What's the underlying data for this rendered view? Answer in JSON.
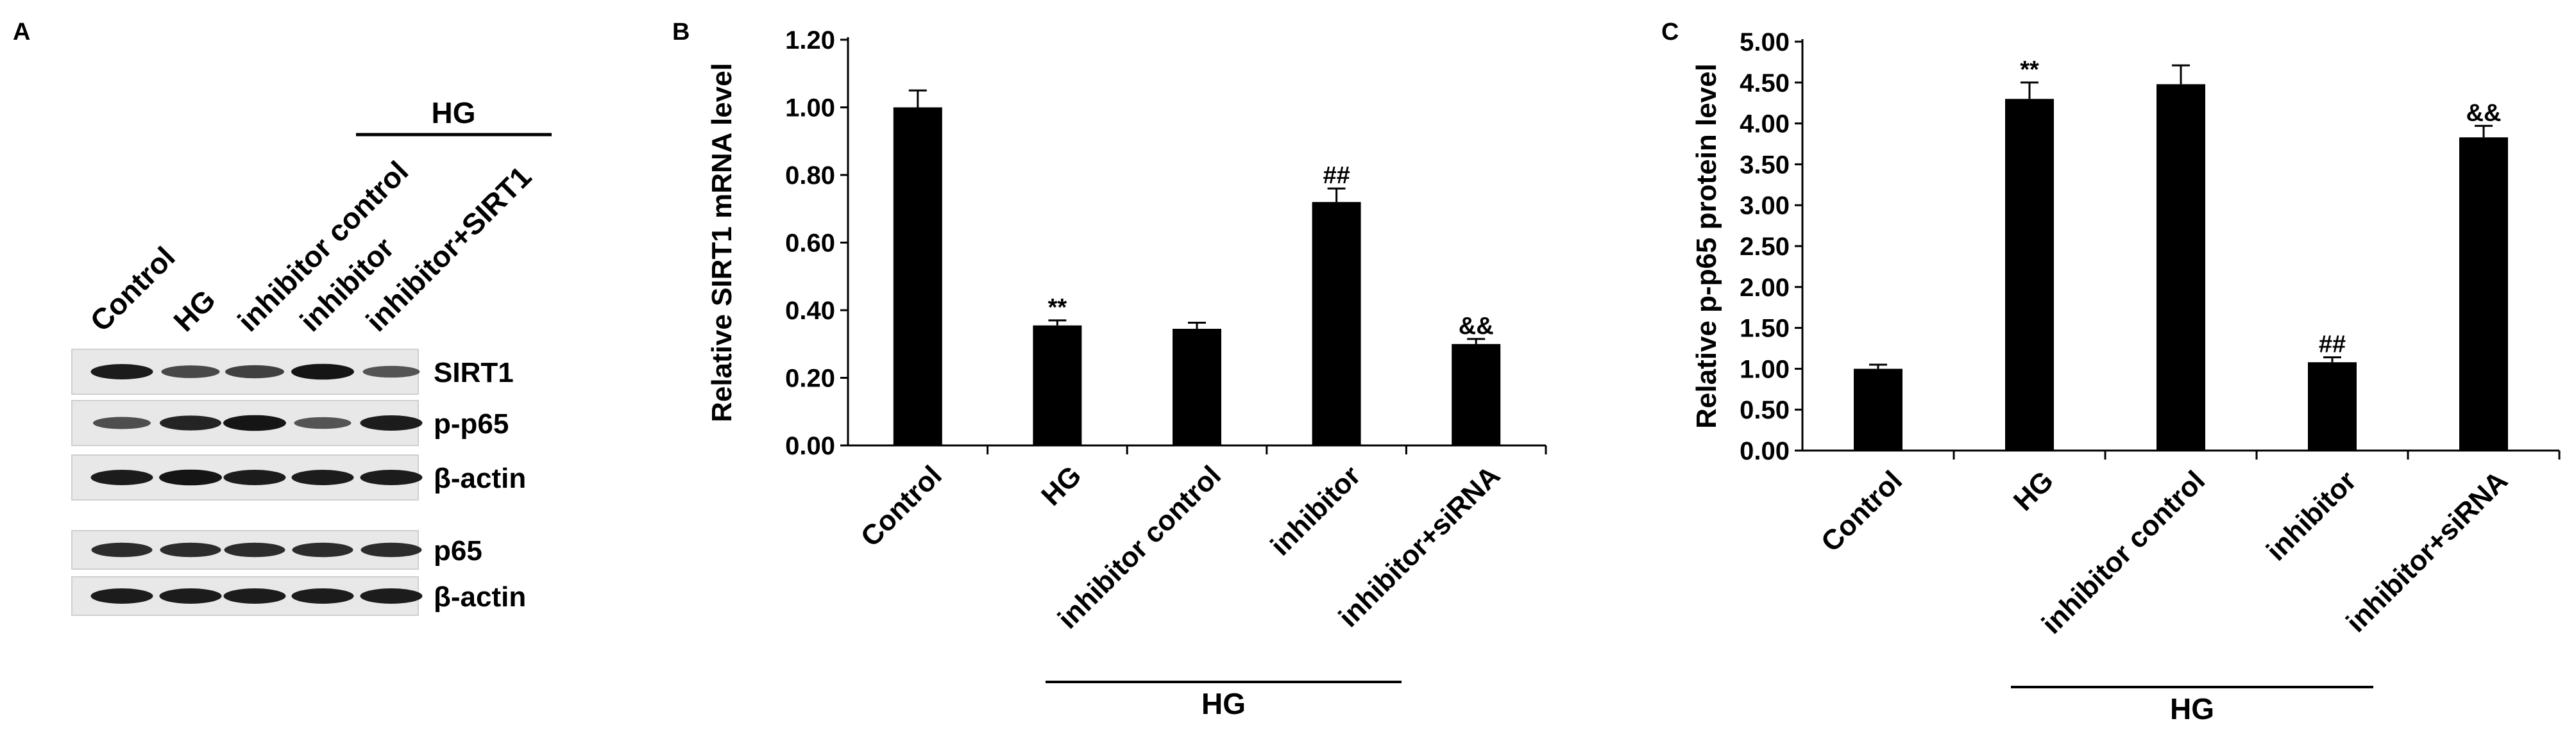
{
  "panels": [
    {
      "letter": "A",
      "type": "blot",
      "group_label": "HG",
      "lanes": [
        "Control",
        "HG",
        "inhibitor control",
        "inhibitor",
        "inhibitor+SIRT1"
      ],
      "rows": [
        {
          "label": "SIRT1",
          "intensity": [
            0.85,
            0.55,
            0.6,
            0.9,
            0.45
          ]
        },
        {
          "label": "p-p65",
          "intensity": [
            0.5,
            0.8,
            0.9,
            0.45,
            0.85
          ]
        },
        {
          "label": "β-actin",
          "intensity": [
            0.85,
            0.9,
            0.85,
            0.85,
            0.85
          ]
        },
        {
          "label": "p65",
          "intensity": [
            0.75,
            0.75,
            0.75,
            0.75,
            0.75
          ]
        },
        {
          "label": "β-actin",
          "intensity": [
            0.85,
            0.85,
            0.85,
            0.85,
            0.85
          ]
        }
      ]
    }
  ],
  "chart_data": [
    {
      "letter": "B",
      "type": "bar",
      "ylabel": "Relative SIRT1 mRNA level",
      "categories": [
        "Control",
        "HG",
        "inhibitor control",
        "inhibitor",
        "inhibitor+siRNA"
      ],
      "values": [
        1.0,
        0.355,
        0.345,
        0.72,
        0.3
      ],
      "errors": [
        0.05,
        0.015,
        0.018,
        0.04,
        0.015
      ],
      "annotations": [
        "",
        "**",
        "",
        "##",
        "&&"
      ],
      "ylim": [
        0,
        1.2
      ],
      "yticks": [
        "0.00",
        "0.20",
        "0.40",
        "0.60",
        "0.80",
        "1.00",
        "1.20"
      ],
      "group_label": "HG",
      "bar_color": "#000000"
    },
    {
      "letter": "C",
      "type": "bar",
      "ylabel": "Relative p-p65 protein level",
      "categories": [
        "Control",
        "HG",
        "inhibitor control",
        "inhibitor",
        "inhibitor+siRNA"
      ],
      "values": [
        1.0,
        4.3,
        4.48,
        1.08,
        3.83
      ],
      "errors": [
        0.05,
        0.2,
        0.23,
        0.06,
        0.14
      ],
      "annotations": [
        "",
        "**",
        "",
        "##",
        "&&"
      ],
      "ylim": [
        0,
        5.0
      ],
      "yticks": [
        "0.00",
        "0.50",
        "1.00",
        "1.50",
        "2.00",
        "2.50",
        "3.00",
        "3.50",
        "4.00",
        "4.50",
        "5.00"
      ],
      "group_label": "HG",
      "bar_color": "#000000"
    }
  ]
}
